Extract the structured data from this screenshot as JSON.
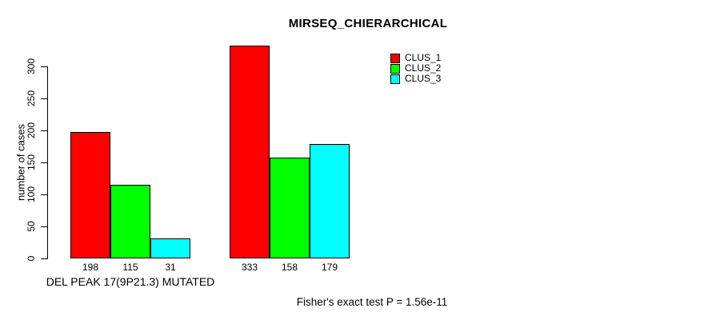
{
  "chart_data": {
    "type": "bar",
    "title": "MIRSEQ_CHIERARCHICAL",
    "ylabel": "number of cases",
    "xlabel": "",
    "ylim": [
      0,
      300
    ],
    "yticks": [
      0,
      50,
      100,
      150,
      200,
      250,
      300
    ],
    "grid": false,
    "legend_position": "top-right",
    "series": [
      {
        "name": "CLUS_1",
        "color": "#FF0000"
      },
      {
        "name": "CLUS_2",
        "color": "#00FF00"
      },
      {
        "name": "CLUS_3",
        "color": "#00FFFF"
      }
    ],
    "groups": [
      {
        "label": "DEL PEAK 17(9P21.3) MUTATED",
        "values": [
          198,
          115,
          31
        ]
      },
      {
        "label": "",
        "values": [
          333,
          158,
          179
        ]
      }
    ],
    "annotation": "Fisher's exact test P = 1.56e-11"
  }
}
